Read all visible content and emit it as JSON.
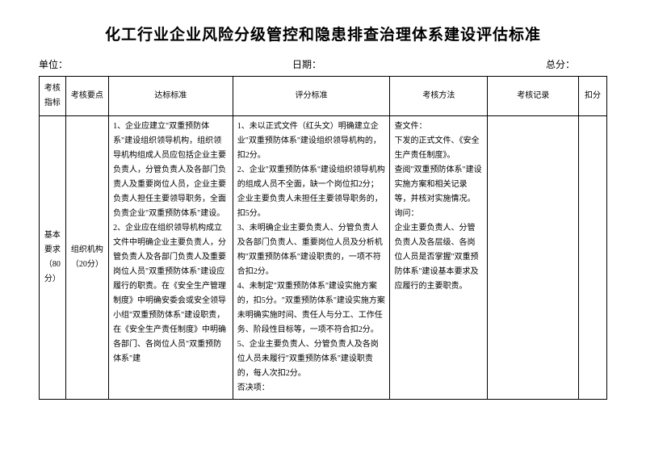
{
  "title": "化工行业企业风险分级管控和隐患排查治理体系建设评估标准",
  "meta": {
    "unit_label": "单位：",
    "date_label": "日期：",
    "total_label": "总分："
  },
  "headers": [
    "考核指标",
    "考核要点",
    "达标标准",
    "评分标准",
    "考核方法",
    "考核记录",
    "扣分"
  ],
  "row": {
    "indicator_l1": "基本要求",
    "indicator_l2": "（80分）",
    "point_l1": "组织机构",
    "point_l2": "（20分）",
    "standard": "1、企业应建立\"双重预防体系\"建设组织领导机构，组织领导机构组成人员应包括企业主要负责人，分管负责人及各部门负责人及重要岗位人员，企业主要负责人担任主要领导职务，全面负责企业\"双重预防体系\"建设。\n2、企业应在组织领导机构成立文件中明确企业主要负责人，分管负责人及各部门负责人及重要岗位人员\"双重预防体系\"建设应履行的职责。在《安全生产管理制度》中明确安委会或安全领导小组\"双重预防体系\"建设职责，在《安全生产责任制度》中明确各部门、各岗位人员\"双重预防体系\"建",
    "scoring": "1、未以正式文件（红头文）明确建立企业\"双重预防体系\"建设组织领导机构的，扣2分。\n2、企业\"双重预防体系\"建设组织领导机构的组成人员不全面，缺一个岗位扣2分；企业主要负责人未担任主要领导职务的，扣5分。\n3、未明确企业主要负责人、分管负责人及各部门负责人、重要岗位人员及分析机构\"双重预防体系\"建设职责的，一项不符合扣2分。\n4、未制定\"双重预防体系\"建设实施方案的，扣5分。\"双重预防体系\"建设实施方案未明确实施时间、责任人与分工、工作任务、阶段性目标等，一项不符合扣2分。\n5、企业主要负责人、分管负责人及各岗位人员未履行\"双重预防体系\"建设职责的，每人次扣2分。\n否决项：",
    "method": "查文件：\n下发的正式文件、《安全生产责任制度》。\n查阅\"双重预防体系\"建设实施方案和相关记录等，并核对实施情况。\n询问：\n企业主要负责人、分管负责人及各层级、各岗位人员是否掌握\"双重预防体系\"建设基本要求及应履行的主要职责。"
  }
}
